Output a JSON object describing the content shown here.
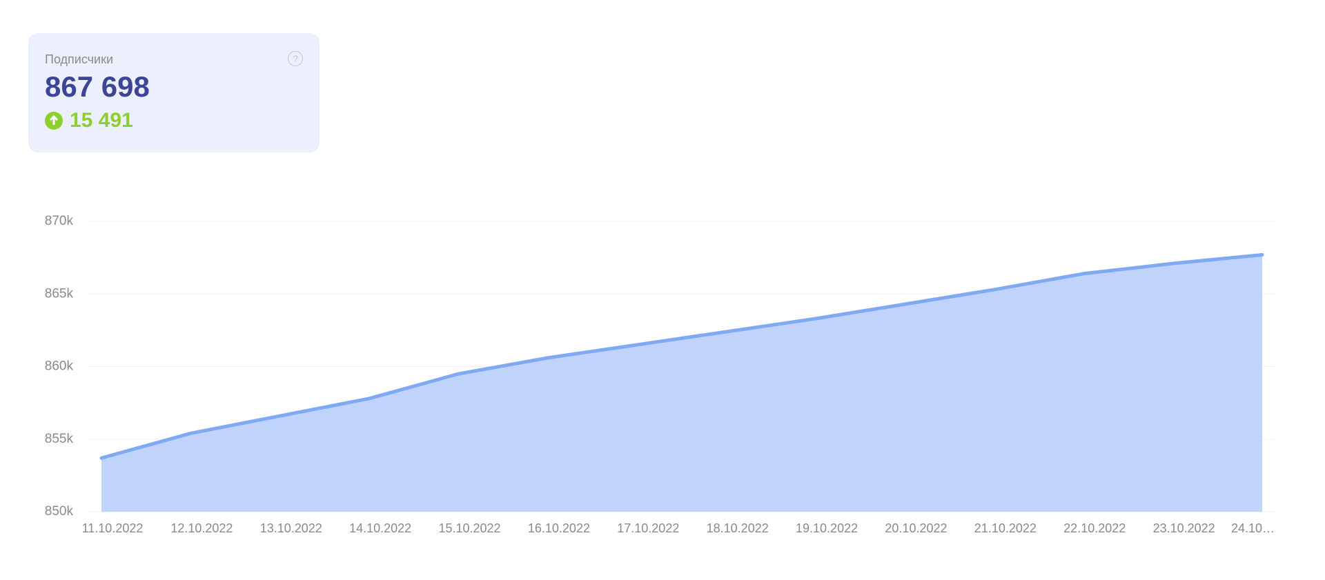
{
  "card": {
    "label": "Подписчики",
    "help": "?",
    "total": "867 698",
    "change": "15 491"
  },
  "chart_data": {
    "type": "area",
    "categories": [
      "11.10.2022",
      "12.10.2022",
      "13.10.2022",
      "14.10.2022",
      "15.10.2022",
      "16.10.2022",
      "17.10.2022",
      "18.10.2022",
      "19.10.2022",
      "20.10.2022",
      "21.10.2022",
      "22.10.2022",
      "23.10.2022",
      "24.10…"
    ],
    "series": [
      {
        "name": "Подписчики",
        "color": "#7fa8f5",
        "values": [
          853700,
          855400,
          856600,
          857800,
          859500,
          860600,
          861500,
          862400,
          863300,
          864300,
          865300,
          866400,
          867100,
          867698
        ]
      }
    ],
    "ylim": [
      850000,
      870000
    ],
    "yticks": [
      {
        "value": 850000,
        "label": "850k"
      },
      {
        "value": 855000,
        "label": "855k"
      },
      {
        "value": 860000,
        "label": "860k"
      },
      {
        "value": 865000,
        "label": "865k"
      },
      {
        "value": 870000,
        "label": "870k"
      }
    ],
    "grid": true
  }
}
